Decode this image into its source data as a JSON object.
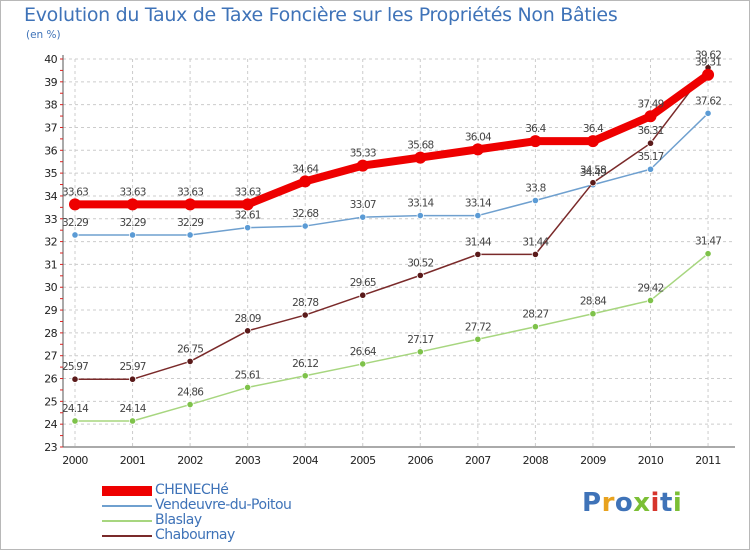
{
  "title": "Evolution du Taux de Taxe Foncière sur les Propriétés Non Bâties",
  "subtitle": "(en %)",
  "brand": {
    "text": "Proxiti",
    "letter_colors": [
      "#3f73b8",
      "#e8a21e",
      "#3f73b8",
      "#7bbf35",
      "#d6352c",
      "#3f73b8",
      "#7bbf35"
    ]
  },
  "chart_data": {
    "type": "line",
    "categories": [
      "2000",
      "2001",
      "2002",
      "2003",
      "2004",
      "2005",
      "2006",
      "2007",
      "2008",
      "2009",
      "2010",
      "2011"
    ],
    "ylim": [
      23,
      40
    ],
    "yticks": [
      "23",
      "24",
      "25",
      "26",
      "27",
      "28",
      "29",
      "30",
      "31",
      "32",
      "33",
      "34",
      "35",
      "36",
      "37",
      "38",
      "39",
      "40"
    ],
    "grid": true,
    "legend_position": "bottom-left",
    "series": [
      {
        "name": "CHENECHé",
        "color": "#ee0000",
        "marker_color": "#ee0000",
        "values": [
          33.63,
          33.63,
          33.63,
          33.63,
          34.64,
          35.33,
          35.68,
          36.04,
          36.4,
          36.4,
          37.49,
          39.31
        ],
        "labels": [
          "33.63",
          "33.63",
          "33.63",
          "33.63",
          "34.64",
          "35.33",
          "35.68",
          "36.04",
          "36.4",
          "36.4",
          "37.49",
          "39.31"
        ]
      },
      {
        "name": "Vendeuvre-du-Poitou",
        "color": "#6fa0cf",
        "marker_color": "#5b9bd5",
        "values": [
          32.29,
          32.29,
          32.29,
          32.61,
          32.68,
          33.07,
          33.14,
          33.14,
          33.8,
          34.49,
          35.17,
          37.62
        ],
        "labels": [
          "32.29",
          "32.29",
          "32.29",
          "32.61",
          "32.68",
          "33.07",
          "33.14",
          "33.14",
          "33.8",
          "34.49",
          "35.17",
          "37.62"
        ]
      },
      {
        "name": "Blaslay",
        "color": "#a7d67f",
        "marker_color": "#7ec24a",
        "values": [
          24.14,
          24.14,
          24.86,
          25.61,
          26.12,
          26.64,
          27.17,
          27.72,
          28.27,
          28.84,
          29.42,
          31.47
        ],
        "labels": [
          "24.14",
          "24.14",
          "24.86",
          "25.61",
          "26.12",
          "26.64",
          "27.17",
          "27.72",
          "28.27",
          "28.84",
          "29.42",
          "31.47"
        ]
      },
      {
        "name": "Chabournay",
        "color": "#7a2a2a",
        "marker_color": "#5a1a1a",
        "values": [
          25.97,
          25.97,
          26.75,
          28.09,
          28.78,
          29.65,
          30.52,
          31.44,
          31.44,
          34.58,
          36.31,
          39.62
        ],
        "labels": [
          "25.97",
          "25.97",
          "26.75",
          "28.09",
          "28.78",
          "29.65",
          "30.52",
          "31.44",
          "31.44",
          "34.58",
          "36.31",
          "39.62"
        ]
      }
    ]
  }
}
